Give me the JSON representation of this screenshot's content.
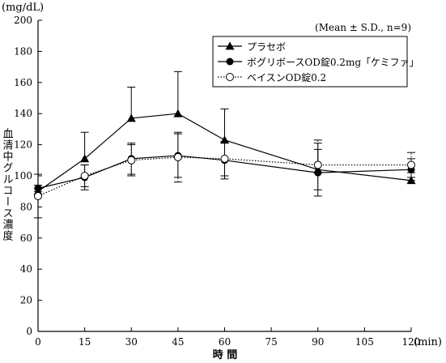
{
  "chart_data": {
    "type": "line",
    "y_unit": "(mg/dL)",
    "ylabel": "血清中グルコース濃度",
    "xlabel": "時 間",
    "x_unit": "(min)",
    "annotation": "(Mean ± S.D., n=9)",
    "ylim": [
      0,
      200
    ],
    "xlim": [
      0,
      120
    ],
    "y_ticks": [
      0,
      20,
      40,
      60,
      80,
      100,
      120,
      140,
      160,
      180,
      200
    ],
    "x_ticks": [
      0,
      15,
      30,
      45,
      60,
      75,
      90,
      105,
      120
    ],
    "x": [
      0,
      15,
      30,
      45,
      60,
      90,
      120
    ],
    "legend_position": "top-right",
    "series": [
      {
        "name": "プラセボ",
        "marker": "filled-triangle",
        "line": "solid",
        "values": [
          90,
          111,
          137,
          140,
          123,
          104,
          97
        ],
        "sd": [
          2,
          17,
          20,
          27,
          20,
          17,
          5
        ]
      },
      {
        "name": "ボグリボースOD錠0.2mg「ケミファ」",
        "marker": "filled-circle",
        "line": "solid",
        "values": [
          92,
          99,
          111,
          113,
          110,
          102,
          104
        ],
        "sd": [
          2,
          8,
          10,
          14,
          12,
          15,
          7
        ]
      },
      {
        "name": "ベイスンOD錠0.2",
        "marker": "open-circle",
        "line": "dotted",
        "values": [
          87,
          100,
          110,
          112,
          111,
          107,
          107
        ],
        "sd": [
          14,
          7,
          10,
          16,
          11,
          16,
          8
        ]
      }
    ]
  }
}
